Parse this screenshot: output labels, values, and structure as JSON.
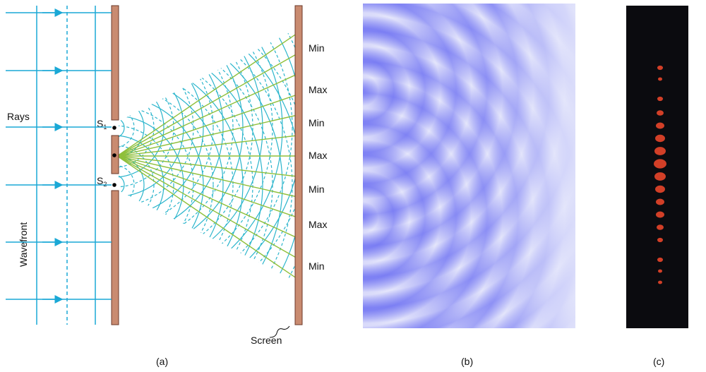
{
  "panel_a": {
    "rays_label": "Rays",
    "wavefront_label": "Wavefront",
    "slit_1": {
      "letter": "S",
      "sub": "1"
    },
    "slit_2": {
      "letter": "S",
      "sub": "2"
    },
    "screen_labels": [
      "Min",
      "Max",
      "Min",
      "Max",
      "Min",
      "Max",
      "Min"
    ],
    "screen_label": "Screen",
    "caption": "(a)"
  },
  "panel_b": {
    "caption": "(b)"
  },
  "panel_c": {
    "caption": "(c)"
  }
}
